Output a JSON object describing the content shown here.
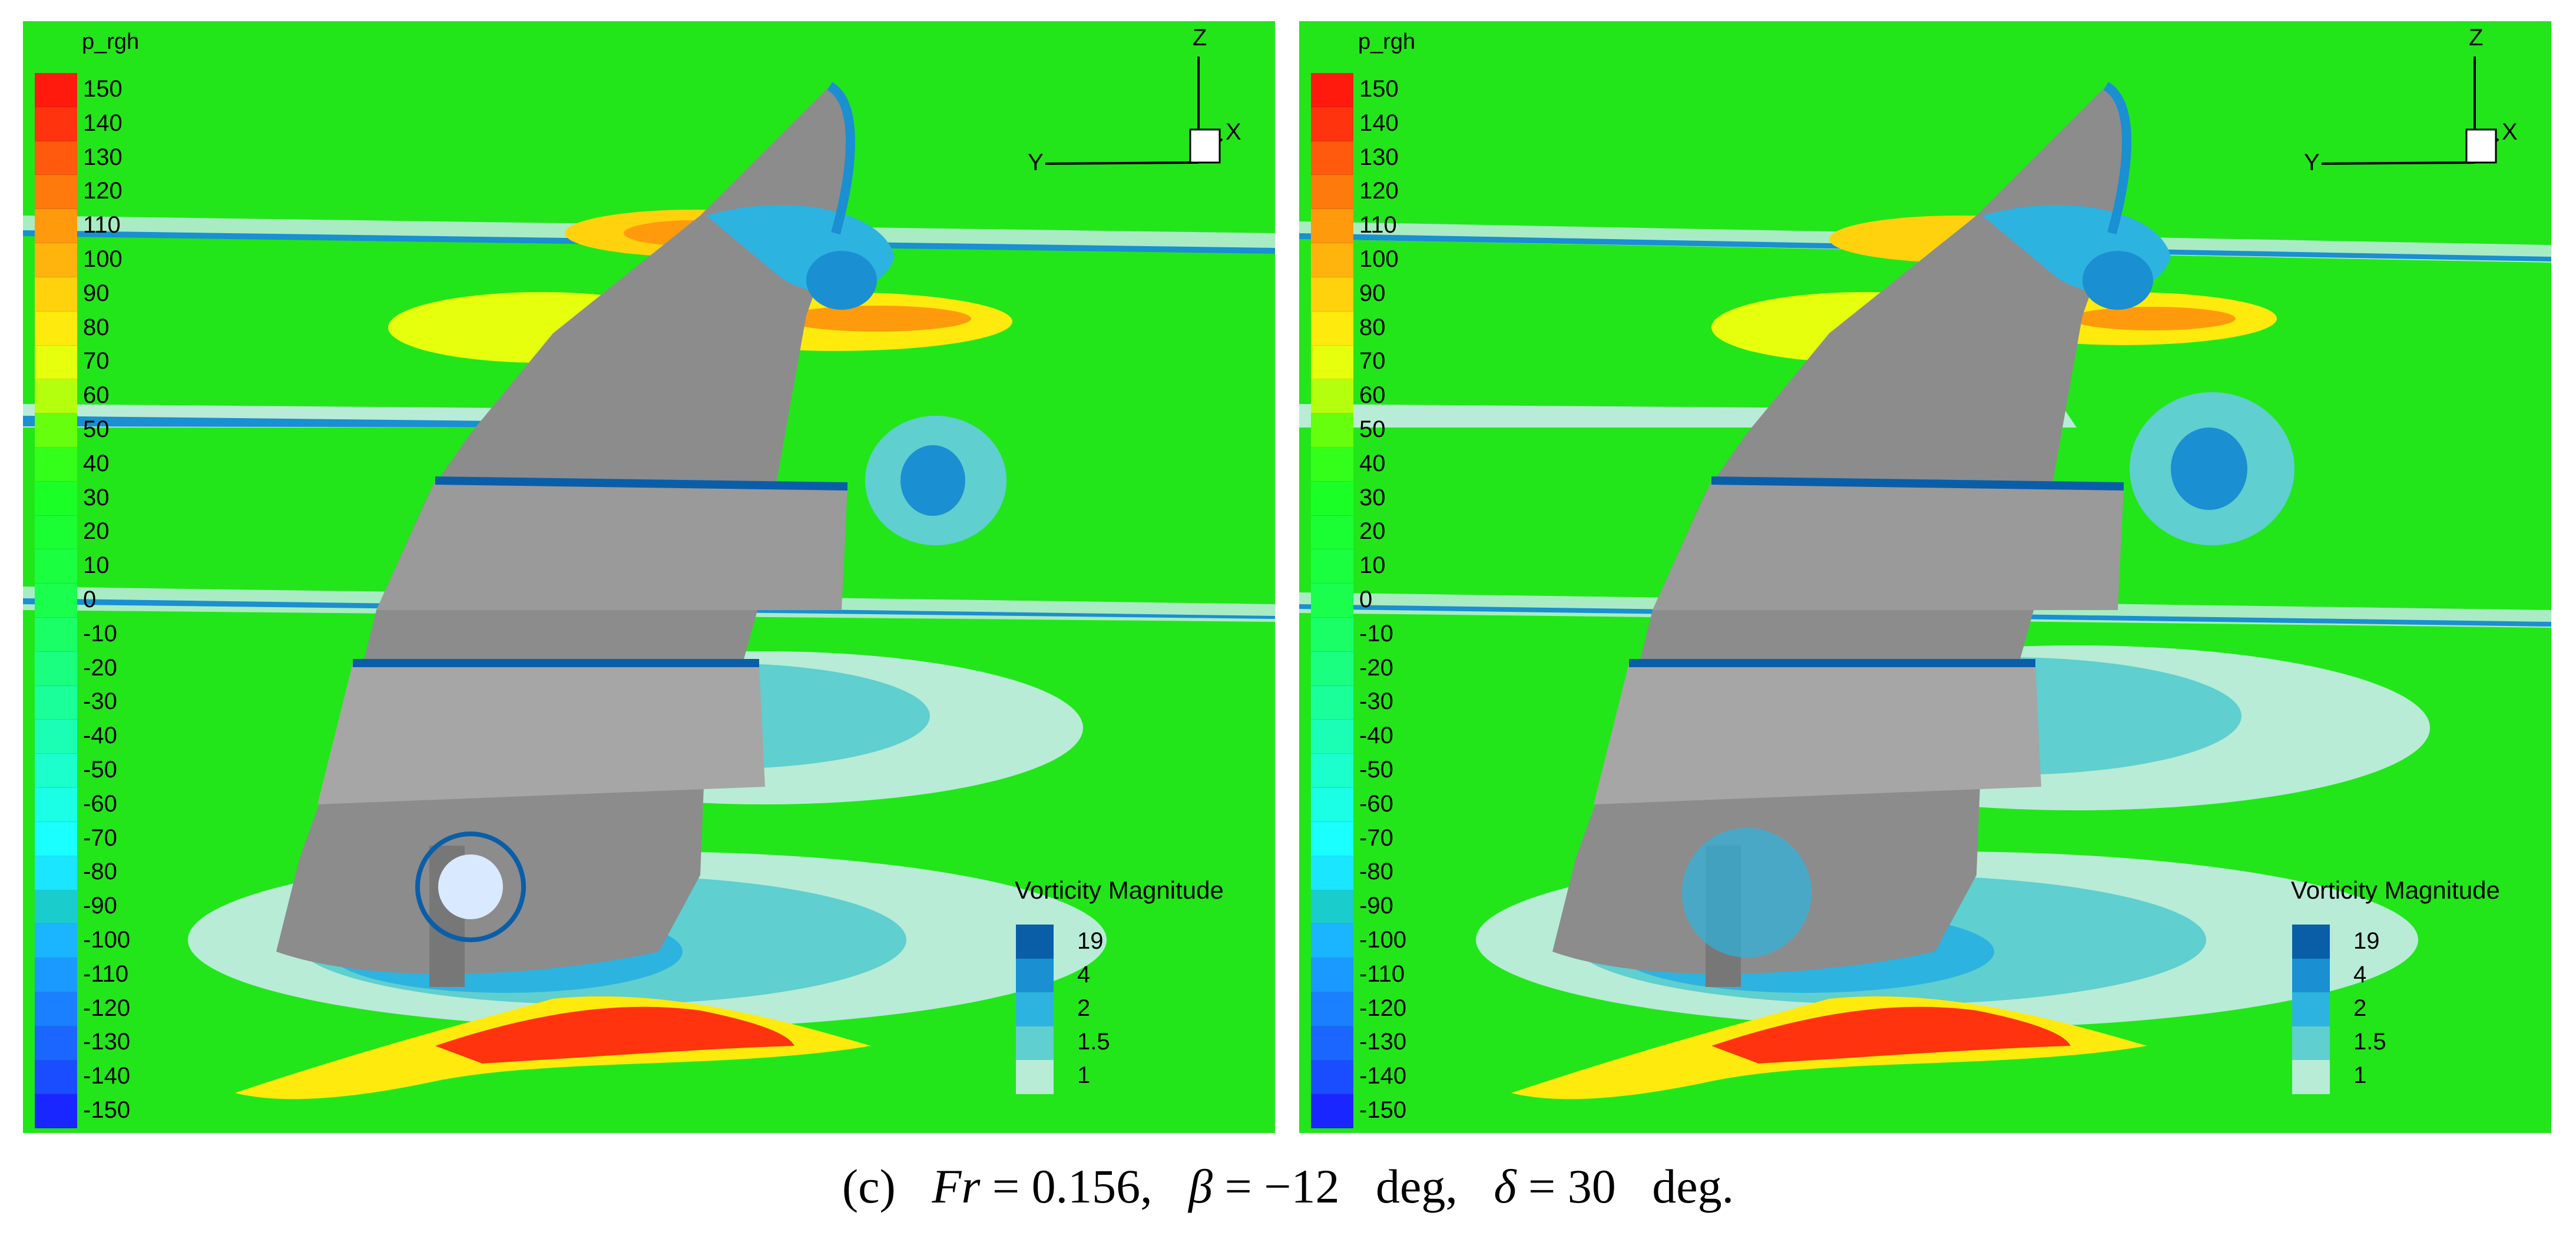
{
  "figure": {
    "caption": {
      "label": "(c)",
      "fr_symbol": "Fr",
      "fr_value": "0.156",
      "beta_symbol": "β",
      "beta_value": "−12",
      "delta_symbol": "δ",
      "delta_value": "30",
      "unit": "deg",
      "separator": ",",
      "equals": "=",
      "end": "."
    }
  },
  "panels": [
    {
      "pressure_legend_title": "p_rgh",
      "pressure_levels": [
        "150",
        "140",
        "130",
        "120",
        "110",
        "100",
        "90",
        "80",
        "70",
        "60",
        "50",
        "40",
        "30",
        "20",
        "10",
        "0",
        "-10",
        "-20",
        "-30",
        "-40",
        "-50",
        "-60",
        "-70",
        "-80",
        "-90",
        "-100",
        "-110",
        "-120",
        "-130",
        "-140",
        "-150"
      ],
      "vorticity_legend_title": "Vorticity Magnitude",
      "vorticity_levels": [
        "19",
        "4",
        "2",
        "1.5",
        "1"
      ],
      "axes": {
        "z": "Z",
        "x": "X",
        "y": "Y"
      }
    },
    {
      "pressure_legend_title": "p_rgh",
      "pressure_levels": [
        "150",
        "140",
        "130",
        "120",
        "110",
        "100",
        "90",
        "80",
        "70",
        "60",
        "50",
        "40",
        "30",
        "20",
        "10",
        "0",
        "-10",
        "-20",
        "-30",
        "-40",
        "-50",
        "-60",
        "-70",
        "-80",
        "-90",
        "-100",
        "-110",
        "-120",
        "-130",
        "-140",
        "-150"
      ],
      "vorticity_legend_title": "Vorticity Magnitude",
      "vorticity_levels": [
        "19",
        "4",
        "2",
        "1.5",
        "1"
      ],
      "axes": {
        "z": "Z",
        "x": "X",
        "y": "Y"
      }
    }
  ],
  "colors": {
    "background_field": "#22e61a",
    "hull": "#8c8c8c",
    "pressure_scale": [
      "#ff1a0d",
      "#ff330d",
      "#ff5a0d",
      "#ff7a0d",
      "#ff9a0d",
      "#ffb40d",
      "#ffd20d",
      "#ffea0d",
      "#e6ff0d",
      "#b4ff0d",
      "#66ff0d",
      "#33ff1a",
      "#1aff26",
      "#1aff33",
      "#1aff40",
      "#1aff4d",
      "#1aff66",
      "#1aff80",
      "#1aff99",
      "#1affb4",
      "#1affcc",
      "#1affe6",
      "#1affff",
      "#1ae6ff",
      "#1acccc",
      "#1ab4ff",
      "#1a99ff",
      "#1a80ff",
      "#1a66ff",
      "#1a4dff",
      "#1a26ff"
    ],
    "vorticity_scale": [
      "#0a5ea8",
      "#1a8fd1",
      "#2db3e0",
      "#5fcfd0",
      "#b8ecd6"
    ]
  }
}
